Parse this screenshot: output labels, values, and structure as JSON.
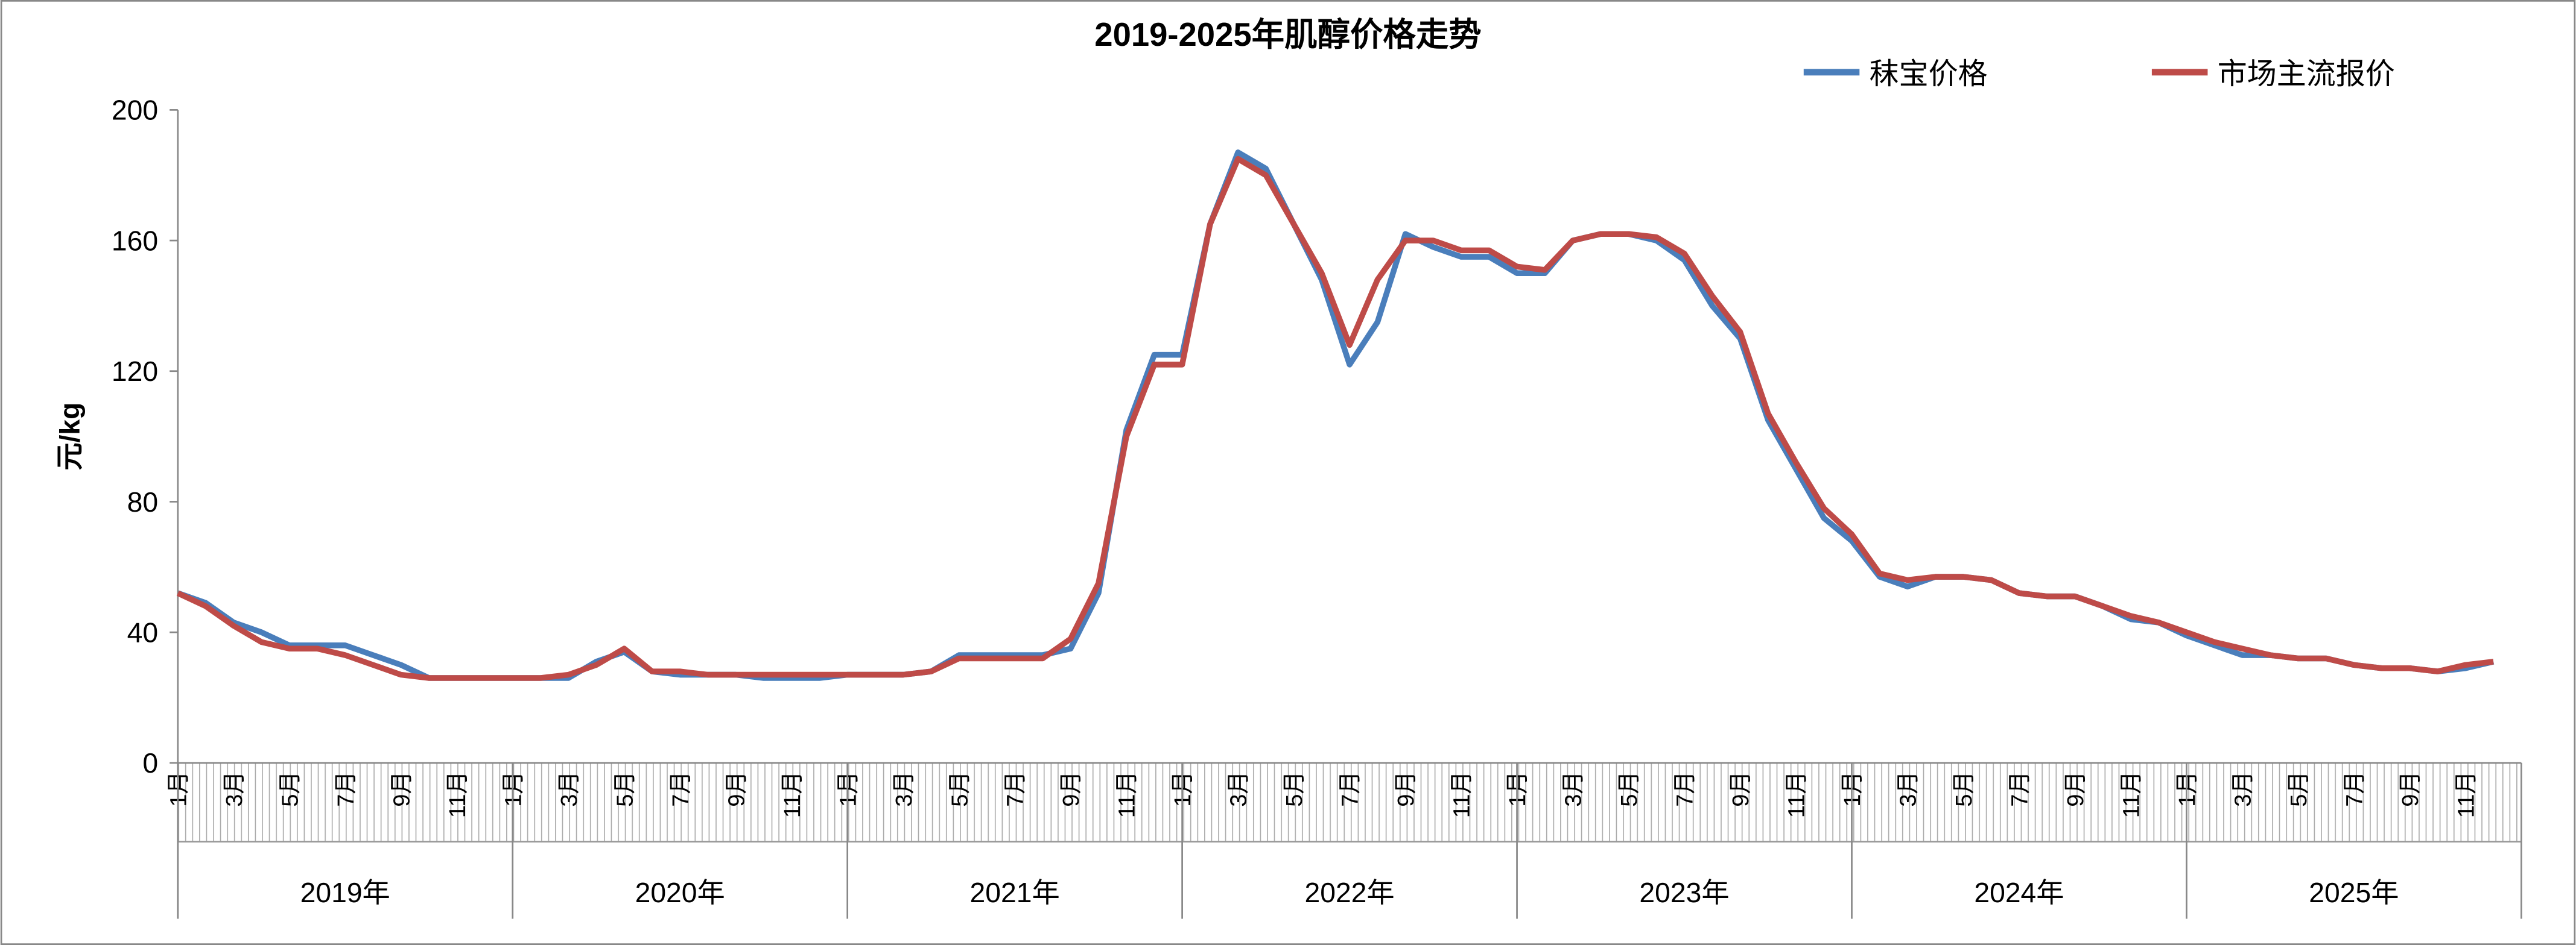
{
  "chart_data": {
    "type": "line",
    "title": "2019-2025年肌醇价格走势",
    "y_label": "元/kg",
    "categories": [
      "1月",
      null,
      "3月",
      null,
      "5月",
      null,
      "7月",
      null,
      "9月",
      null,
      "11月",
      null,
      "1月",
      null,
      "3月",
      null,
      "5月",
      null,
      "7月",
      null,
      "9月",
      null,
      "11月",
      null,
      "1月",
      null,
      "3月",
      null,
      "5月",
      null,
      "7月",
      null,
      "9月",
      null,
      "11月",
      null,
      "1月",
      null,
      "3月",
      null,
      "5月",
      null,
      "7月",
      null,
      "9月",
      null,
      "11月",
      null,
      "1月",
      null,
      "3月",
      null,
      "5月",
      null,
      "7月",
      null,
      "9月",
      null,
      "11月",
      null,
      "1月",
      null,
      "3月",
      null,
      "5月",
      null,
      "7月",
      null,
      "9月",
      null,
      "11月",
      null,
      "1月",
      null,
      "3月",
      null,
      "5月",
      null,
      "7月",
      null,
      "9月",
      null,
      "11月",
      null
    ],
    "x_groups": [
      "2019年",
      "2020年",
      "2021年",
      "2022年",
      "2023年",
      "2024年",
      "2025年"
    ],
    "series": [
      {
        "name": "秣宝价格",
        "color": "#4a7ebb",
        "values": [
          52,
          49,
          43,
          40,
          36,
          36,
          36,
          33,
          30,
          26,
          26,
          26,
          26,
          26,
          26,
          31,
          34,
          28,
          27,
          27,
          27,
          26,
          26,
          26,
          27,
          27,
          27,
          28,
          33,
          33,
          33,
          33,
          35,
          52,
          102,
          125,
          125,
          165,
          187,
          182,
          165,
          148,
          122,
          135,
          162,
          158,
          155,
          155,
          150,
          150,
          160,
          162,
          162,
          160,
          154,
          140,
          130,
          105,
          90,
          75,
          68,
          57,
          54,
          57,
          57,
          56,
          52,
          51,
          51,
          48,
          44,
          43,
          39,
          36,
          33,
          33,
          32,
          32,
          30,
          29,
          29,
          28,
          29,
          31
        ]
      },
      {
        "name": "市场主流报价",
        "color": "#be4b48",
        "values": [
          52,
          48,
          42,
          37,
          35,
          35,
          33,
          30,
          27,
          26,
          26,
          26,
          26,
          26,
          27,
          30,
          35,
          28,
          28,
          27,
          27,
          27,
          27,
          27,
          27,
          27,
          27,
          28,
          32,
          32,
          32,
          32,
          38,
          55,
          100,
          122,
          122,
          165,
          185,
          180,
          165,
          150,
          128,
          148,
          160,
          160,
          157,
          157,
          152,
          151,
          160,
          162,
          162,
          161,
          156,
          143,
          132,
          107,
          92,
          78,
          70,
          58,
          56,
          57,
          57,
          56,
          52,
          51,
          51,
          48,
          45,
          43,
          40,
          37,
          35,
          33,
          32,
          32,
          30,
          29,
          29,
          28,
          30,
          31
        ]
      }
    ],
    "ylim": [
      0,
      200
    ],
    "yticks": [
      0,
      40,
      80,
      120,
      160,
      200
    ]
  }
}
